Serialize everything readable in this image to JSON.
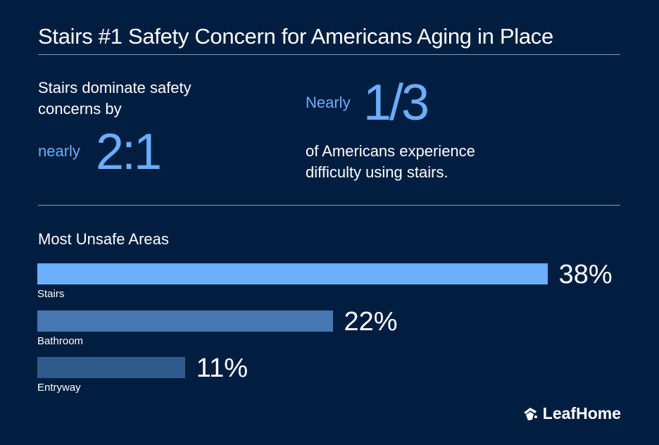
{
  "title": "Stairs #1 Safety Concern for Americans Aging in Place",
  "stat1": {
    "line1": "Stairs dominate safety",
    "line2": "concerns by",
    "prefix": "nearly",
    "value": "2:1"
  },
  "stat2": {
    "prefix": "Nearly",
    "value": "1/3",
    "line1": "of Americans experience",
    "line2": "difficulty using stairs."
  },
  "colors": {
    "background": "#011e41",
    "accent": "#6aaefc"
  },
  "chart_data": {
    "type": "bar",
    "orientation": "horizontal",
    "title": "Most Unsafe Areas",
    "categories": [
      "Stairs",
      "Bathroom",
      "Entryway"
    ],
    "values": [
      38,
      22,
      11
    ],
    "value_labels": [
      "38%",
      "22%",
      "11%"
    ],
    "colors": [
      "#6aaefc",
      "#4677b0",
      "#2f5a8c"
    ],
    "unit": "%",
    "grid": false
  },
  "logo": {
    "text": "LeafHome",
    "icon": "leaf-house-icon"
  }
}
